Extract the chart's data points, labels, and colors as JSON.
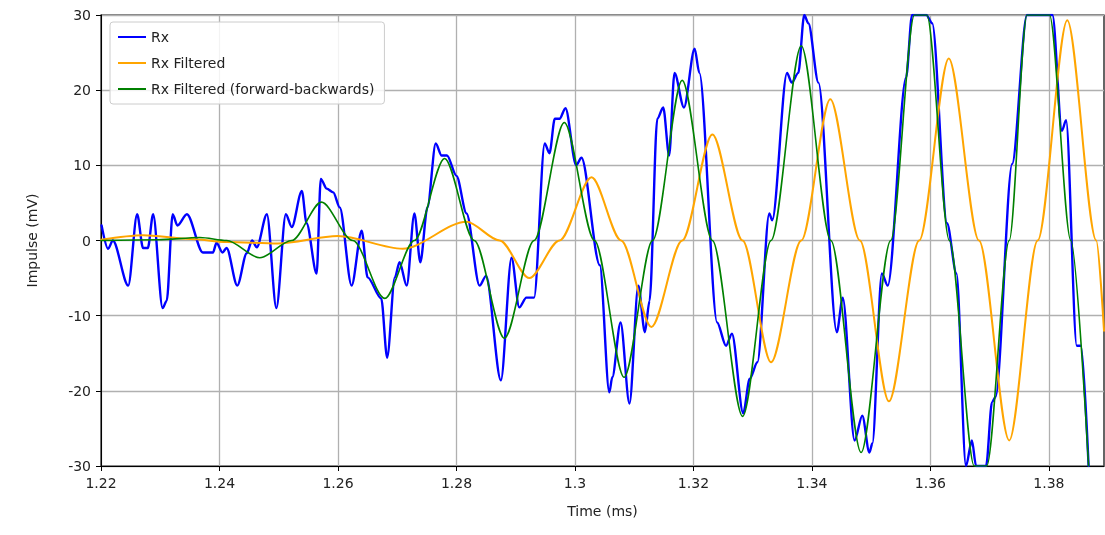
{
  "chart_data": {
    "type": "line",
    "xlabel": "Time (ms)",
    "ylabel": "Impulse (mV)",
    "xlim": [
      1.22,
      1.3893
    ],
    "xticks": [
      1.22,
      1.24,
      1.26,
      1.28,
      1.3,
      1.32,
      1.34,
      1.36,
      1.38
    ],
    "ylim": [
      -30,
      30
    ],
    "yticks": [
      -30,
      -20,
      -10,
      0,
      10,
      20,
      30
    ],
    "grid": true,
    "legend": "top left",
    "line_style": "solid",
    "marker": "none",
    "series": [
      {
        "name": "Rx",
        "color": "#0000ff",
        "x": [
          1.2201,
          1.2212,
          1.222,
          1.2246,
          1.2261,
          1.2271,
          1.2279,
          1.2288,
          1.2304,
          1.2311,
          1.2321,
          1.2329,
          1.2345,
          1.2372,
          1.2389,
          1.2395,
          1.2405,
          1.2412,
          1.243,
          1.2446,
          1.2455,
          1.2463,
          1.248,
          1.2496,
          1.2512,
          1.2522,
          1.2539,
          1.2547,
          1.2564,
          1.2571,
          1.2581,
          1.2592,
          1.2603,
          1.2623,
          1.264,
          1.265,
          1.2673,
          1.2683,
          1.2696,
          1.2704,
          1.2716,
          1.2729,
          1.2739,
          1.2751,
          1.2765,
          1.2775,
          1.2784,
          1.28,
          1.2817,
          1.2839,
          1.285,
          1.2875,
          1.2893,
          1.2906,
          1.2918,
          1.2931,
          1.2949,
          1.2957,
          1.2966,
          1.2974,
          1.2984,
          1.3002,
          1.3011,
          1.3042,
          1.3058,
          1.3063,
          1.3077,
          1.3092,
          1.3107,
          1.3118,
          1.3126,
          1.3139,
          1.3149,
          1.3159,
          1.3168,
          1.3184,
          1.3202,
          1.321,
          1.324,
          1.3255,
          1.3265,
          1.3284,
          1.3295,
          1.3308,
          1.3328,
          1.3333,
          1.3358,
          1.3366,
          1.3377,
          1.3387,
          1.3394,
          1.3411,
          1.3442,
          1.3452,
          1.3472,
          1.3485,
          1.3497,
          1.3502,
          1.3518,
          1.3528,
          1.3559,
          1.3569,
          1.3593,
          1.3603,
          1.3628,
          1.3644,
          1.366,
          1.367,
          1.3677,
          1.3694,
          1.3704,
          1.371,
          1.3738,
          1.3763,
          1.3806,
          1.3822,
          1.3829,
          1.3847,
          1.3854,
          1.3867
        ],
        "values": [
          2,
          -1.1,
          0,
          -6,
          3.5,
          -1,
          -1,
          3.5,
          -9,
          -8,
          3.5,
          2,
          3.5,
          -1.6,
          -1.6,
          -0.3,
          -1.6,
          -1,
          -6,
          -1.7,
          0,
          -0.9,
          3.5,
          -9,
          3.5,
          1.8,
          6.6,
          2.3,
          -4.4,
          8.2,
          6.9,
          6.4,
          4.4,
          -6,
          1.3,
          -4.9,
          -7.7,
          -15.6,
          -4.9,
          -2.9,
          -6,
          3.6,
          -2.9,
          4.4,
          12.9,
          11.3,
          11.3,
          8.6,
          3.6,
          -6,
          -4.7,
          -18.6,
          -2.3,
          -8.9,
          -7.6,
          -7.6,
          12.9,
          11.6,
          16.2,
          16.2,
          17.6,
          10,
          11,
          -3.3,
          -20.2,
          -18.2,
          -10.9,
          -21.7,
          -6,
          -12.2,
          -8,
          16.2,
          17.7,
          11.3,
          22.3,
          17.7,
          25.5,
          22.3,
          -10.9,
          -14,
          -12.4,
          -23,
          -18.4,
          -16.2,
          3.6,
          2.7,
          22.3,
          21,
          22.3,
          30,
          28.9,
          21,
          -12.2,
          -7.6,
          -26.6,
          -23.3,
          -28.2,
          -27,
          -4.4,
          -6,
          21.7,
          30,
          30,
          28.9,
          2.3,
          -4.4,
          -30,
          -26.6,
          -30,
          -30,
          -21.5,
          -20.8,
          10.2,
          30,
          30,
          14.6,
          16,
          -14,
          -14,
          -30
        ]
      },
      {
        "name": "Rx Filtered",
        "color": "#ffa500",
        "x": [
          1.22,
          1.2271,
          1.2351,
          1.2412,
          1.2498,
          1.26,
          1.2709,
          1.2817,
          1.2873,
          1.2923,
          1.2974,
          1.3028,
          1.3078,
          1.3129,
          1.3181,
          1.3232,
          1.3283,
          1.3331,
          1.3382,
          1.3431,
          1.3481,
          1.353,
          1.3581,
          1.3631,
          1.3682,
          1.3733,
          1.3781,
          1.3831,
          1.388,
          1.3893
        ],
        "values": [
          0.1,
          0.7,
          0.2,
          -0.2,
          -0.4,
          0.6,
          -1.1,
          2.5,
          0,
          -5,
          0,
          8.4,
          0,
          -11.5,
          0,
          14.1,
          0,
          -16.2,
          0,
          18.8,
          0,
          -21.4,
          0,
          24.2,
          0,
          -26.6,
          0,
          29.3,
          0,
          -12
        ]
      },
      {
        "name": "Rx Filtered (forward-backwards)",
        "color": "#008000",
        "x": [
          1.22,
          1.2296,
          1.2367,
          1.2412,
          1.2468,
          1.2522,
          1.2572,
          1.2625,
          1.2679,
          1.2729,
          1.278,
          1.283,
          1.2881,
          1.2931,
          1.2982,
          1.3033,
          1.3083,
          1.3131,
          1.3181,
          1.3232,
          1.3283,
          1.3331,
          1.3382,
          1.3432,
          1.3483,
          1.3533,
          1.3573,
          1.3594,
          1.3632,
          1.3674,
          1.3695,
          1.3733,
          1.3763,
          1.3801,
          1.3837,
          1.3867
        ],
        "values": [
          0,
          0.1,
          0.4,
          0,
          -2.3,
          0,
          5.1,
          0,
          -7.7,
          0,
          10.9,
          0,
          -13,
          0,
          15.7,
          0,
          -18.2,
          0,
          21.3,
          0,
          -23.4,
          0,
          25.9,
          0,
          -28.2,
          0,
          30,
          30,
          0,
          -30,
          -30,
          0,
          30,
          30,
          0,
          -30
        ]
      }
    ]
  }
}
